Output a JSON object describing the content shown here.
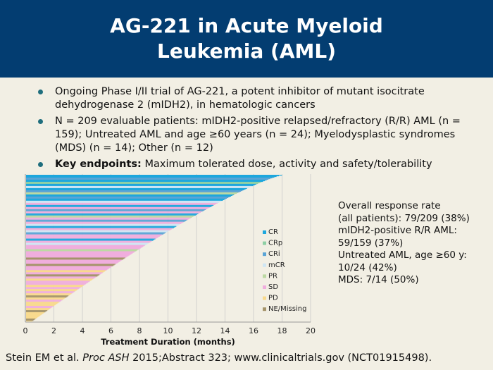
{
  "slide": {
    "title_line1": "AG-221 in Acute Myeloid",
    "title_line2": "Leukemia (AML)",
    "bullets": [
      {
        "bold": "",
        "text": "Ongoing Phase I/II trial of AG-221, a potent inhibitor of mutant isocitrate dehydrogenase 2 (mIDH2), in hematologic cancers"
      },
      {
        "bold": "",
        "text": "N = 209 evaluable patients: mIDH2-positive relapsed/refractory (R/R) AML (n = 159); Untreated AML and age ≥60 years (n = 24); Myelodysplastic syndromes (MDS) (n = 14); Other (n = 12)"
      },
      {
        "bold": "Key endpoints:",
        "text": " Maximum tolerated dose, activity and safety/tolerability"
      }
    ],
    "response": [
      "Overall response rate",
      "(all patients): 79/209 (38%)",
      "mIDH2-positive R/R AML:",
      "59/159 (37%)",
      "Untreated AML, age ≥60 y:",
      "10/24 (42%)",
      "MDS: 7/14 (50%)"
    ],
    "reference_pre": "Stein EM et al. ",
    "reference_journal": "Proc ASH",
    "reference_post": " 2015;Abstract 323; www.clinicaltrials.gov (NCT01915498)."
  },
  "chart_data": {
    "type": "bar",
    "orientation": "horizontal",
    "xlabel": "Treatment Duration (months)",
    "xlim": [
      0,
      20
    ],
    "xticks": [
      "0",
      "2",
      "4",
      "6",
      "8",
      "10",
      "12",
      "14",
      "16",
      "18",
      "20"
    ],
    "grid": "vertical",
    "legend_position": "right-inside",
    "legend": [
      {
        "name": "CR",
        "color": "#1ea7dd"
      },
      {
        "name": "CRp",
        "color": "#8fd0a5"
      },
      {
        "name": "CRi",
        "color": "#5aa4d6"
      },
      {
        "name": "mCR",
        "color": "#cfe6f4"
      },
      {
        "name": "PR",
        "color": "#bcd9a3"
      },
      {
        "name": "SD",
        "color": "#f0aedd"
      },
      {
        "name": "PD",
        "color": "#f8d98c"
      },
      {
        "name": "NE/Missing",
        "color": "#a5946a"
      }
    ],
    "series_pattern": [
      "CR",
      "CRi",
      "CR",
      "CRp",
      "CR",
      "mCR",
      "CR",
      "CRi",
      "PR",
      "CR",
      "CRi",
      "CR",
      "mCR",
      "SD",
      "CR",
      "SD",
      "CRi",
      "SD",
      "CR",
      "PR",
      "SD",
      "CRi",
      "SD",
      "mCR",
      "CR",
      "SD",
      "mCR",
      "CRi",
      "SD",
      "SD",
      "CR",
      "SD",
      "mCR",
      "SD",
      "SD",
      "PR",
      "SD",
      "SD",
      "SD",
      "NE/Missing",
      "SD",
      "SD",
      "NE/Missing",
      "SD",
      "SD",
      "PD",
      "SD",
      "NE/Missing",
      "SD",
      "PD",
      "SD",
      "SD",
      "PD",
      "SD",
      "PD",
      "SD",
      "PD",
      "NE/Missing",
      "PD",
      "SD",
      "PD",
      "PD",
      "SD",
      "PD",
      "NE/Missing",
      "PD",
      "PD",
      "PD",
      "NE/Missing",
      "PD"
    ],
    "start_value": 18.0,
    "end_value": 0.5
  }
}
